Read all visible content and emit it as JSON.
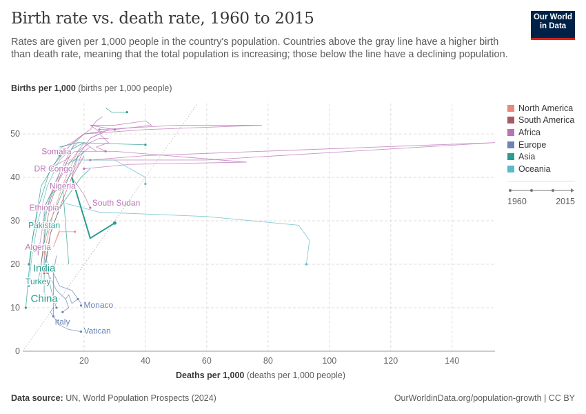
{
  "header": {
    "title": "Birth rate vs. death rate, 1960 to 2015",
    "subtitle": "Rates are given per 1,000 people in the country's population. Countries above the gray line have a higher birth than death rate, meaning that the total population is increasing; those below the line have a declining population.",
    "logo": "Our World in Data"
  },
  "footer": {
    "source_label": "Data source:",
    "source": "UN, World Population Prospects (2024)",
    "url": "OurWorldinData.org/population-growth | CC BY"
  },
  "timeline": {
    "start": "1960",
    "end": "2015"
  },
  "colors": {
    "North America": "#e8897b",
    "South America": "#a85a64",
    "Africa": "#b873b5",
    "Europe": "#6b84b3",
    "Asia": "#2a9d8f",
    "Oceania": "#5bbac8",
    "grid": "#dddddd",
    "diagonal": "#bbbbbb"
  },
  "chart_data": {
    "type": "scatter",
    "connected": true,
    "xlabel_bold": "Deaths per 1,000",
    "xlabel": "(deaths per 1,000 people)",
    "ylabel_bold": "Births per 1,000",
    "ylabel": "(births per 1,000 people)",
    "xlim": [
      0,
      154
    ],
    "ylim": [
      0,
      57
    ],
    "xticks": [
      20,
      40,
      60,
      80,
      100,
      120,
      140
    ],
    "yticks": [
      0,
      10,
      20,
      30,
      40,
      50
    ],
    "grid": true,
    "reference_line": "y = x",
    "legend_position": "right",
    "legend": [
      "North America",
      "South America",
      "Africa",
      "Europe",
      "Asia",
      "Oceania"
    ],
    "series": [
      {
        "name": "Somalia",
        "region": "Africa",
        "label": true,
        "points": [
          [
            26,
            50
          ],
          [
            24,
            51
          ],
          [
            22,
            52
          ],
          [
            30,
            51
          ],
          [
            20,
            50
          ],
          [
            16,
            48
          ],
          [
            13,
            47
          ],
          [
            11,
            46
          ]
        ]
      },
      {
        "name": "DR Congo",
        "region": "Africa",
        "label": true,
        "points": [
          [
            22,
            47
          ],
          [
            20,
            48
          ],
          [
            19,
            47
          ],
          [
            18,
            46
          ],
          [
            17,
            46
          ],
          [
            14,
            44
          ],
          [
            11,
            43
          ],
          [
            10,
            42
          ]
        ]
      },
      {
        "name": "Nigeria",
        "region": "Africa",
        "label": true,
        "points": [
          [
            24,
            46
          ],
          [
            22,
            47
          ],
          [
            20,
            46
          ],
          [
            19,
            45
          ],
          [
            18,
            43
          ],
          [
            15,
            40
          ],
          [
            13,
            38
          ]
        ]
      },
      {
        "name": "Ethiopia",
        "region": "Africa",
        "label": true,
        "points": [
          [
            28,
            49
          ],
          [
            25,
            49
          ],
          [
            22,
            48
          ],
          [
            20,
            47
          ],
          [
            18,
            46
          ],
          [
            14,
            42
          ],
          [
            9,
            36
          ],
          [
            7,
            33
          ]
        ]
      },
      {
        "name": "South Sudan",
        "region": "Africa",
        "label": true,
        "points": [
          [
            28,
            51
          ],
          [
            25,
            50
          ],
          [
            22,
            49
          ],
          [
            20,
            47
          ],
          [
            18,
            45
          ],
          [
            16,
            40
          ],
          [
            20,
            36
          ],
          [
            22,
            33
          ]
        ]
      },
      {
        "name": "Pakistan",
        "region": "Asia",
        "label": true,
        "points": [
          [
            20,
            46
          ],
          [
            17,
            44
          ],
          [
            14,
            43
          ],
          [
            12,
            41
          ],
          [
            10,
            37
          ],
          [
            8,
            33
          ],
          [
            7,
            29
          ]
        ]
      },
      {
        "name": "Algeria",
        "region": "Africa",
        "label": true,
        "points": [
          [
            20,
            50
          ],
          [
            17,
            48
          ],
          [
            14,
            44
          ],
          [
            10,
            38
          ],
          [
            7,
            31
          ],
          [
            5,
            22
          ],
          [
            5,
            24
          ]
        ]
      },
      {
        "name": "India",
        "region": "Asia",
        "label": true,
        "points": [
          [
            22,
            42
          ],
          [
            19,
            40
          ],
          [
            16,
            37
          ],
          [
            13,
            34
          ],
          [
            11,
            31
          ],
          [
            9,
            27
          ],
          [
            8,
            22
          ],
          [
            7,
            19
          ]
        ]
      },
      {
        "name": "Turkey",
        "region": "Asia",
        "label": true,
        "points": [
          [
            18,
            45
          ],
          [
            15,
            40
          ],
          [
            12,
            35
          ],
          [
            9,
            30
          ],
          [
            7,
            25
          ],
          [
            6,
            20
          ],
          [
            5,
            16
          ]
        ]
      },
      {
        "name": "China",
        "region": "Asia",
        "label": true,
        "points": [
          [
            15,
            20
          ],
          [
            13,
            38
          ],
          [
            9,
            36
          ],
          [
            7,
            33
          ],
          [
            7,
            24
          ],
          [
            7,
            18
          ],
          [
            7,
            14
          ],
          [
            7,
            12
          ]
        ]
      },
      {
        "name": "Monaco",
        "region": "Europe",
        "label": true,
        "points": [
          [
            14,
            12
          ],
          [
            15,
            13
          ],
          [
            16,
            11
          ],
          [
            18,
            12
          ],
          [
            19,
            11
          ],
          [
            19,
            10.5
          ]
        ]
      },
      {
        "name": "Italy",
        "region": "Europe",
        "label": true,
        "points": [
          [
            10,
            18
          ],
          [
            10,
            17
          ],
          [
            10,
            14
          ],
          [
            10,
            11
          ],
          [
            10,
            10
          ],
          [
            10,
            9
          ],
          [
            10,
            8
          ]
        ]
      },
      {
        "name": "Vatican",
        "region": "Europe",
        "label": true,
        "points": [
          [
            10,
            10
          ],
          [
            9,
            9
          ],
          [
            12,
            6
          ],
          [
            15,
            5
          ],
          [
            19,
            4.5
          ]
        ]
      },
      {
        "name": "",
        "region": "Africa",
        "label": false,
        "points": [
          [
            22,
            52
          ],
          [
            30,
            52
          ],
          [
            40,
            53
          ],
          [
            42,
            52
          ],
          [
            30,
            51
          ]
        ]
      },
      {
        "name": "",
        "region": "Africa",
        "label": false,
        "points": [
          [
            20,
            44
          ],
          [
            60,
            44
          ],
          [
            154,
            48
          ],
          [
            40,
            45
          ],
          [
            22,
            44
          ]
        ]
      },
      {
        "name": "",
        "region": "Africa",
        "label": false,
        "points": [
          [
            20,
            50
          ],
          [
            40,
            51
          ],
          [
            78,
            52
          ],
          [
            50,
            52
          ],
          [
            25,
            51
          ]
        ]
      },
      {
        "name": "",
        "region": "Africa",
        "label": false,
        "points": [
          [
            18,
            46
          ],
          [
            30,
            46
          ],
          [
            73,
            43.5
          ],
          [
            35,
            43
          ],
          [
            20,
            42
          ]
        ]
      },
      {
        "name": "",
        "region": "Oceania",
        "label": false,
        "points": [
          [
            14,
            34
          ],
          [
            25,
            32
          ],
          [
            60,
            31
          ],
          [
            90,
            29
          ],
          [
            93.5,
            25.5
          ],
          [
            92.5,
            20
          ]
        ]
      },
      {
        "name": "",
        "region": "Asia",
        "label": true,
        "points": [
          [
            16,
            40
          ],
          [
            22,
            26
          ],
          [
            30,
            29.5
          ]
        ]
      },
      {
        "name": "",
        "region": "Asia",
        "label": false,
        "points": [
          [
            12,
            47
          ],
          [
            18,
            48
          ],
          [
            40,
            47.5
          ]
        ]
      },
      {
        "name": "",
        "region": "Oceania",
        "label": false,
        "points": [
          [
            15,
            44
          ],
          [
            30,
            44
          ],
          [
            40,
            40
          ],
          [
            40,
            38.5
          ]
        ]
      },
      {
        "name": "",
        "region": "North America",
        "label": false,
        "points": [
          [
            18,
            46
          ],
          [
            14,
            40
          ],
          [
            10,
            32
          ],
          [
            8,
            26
          ],
          [
            7,
            22
          ],
          [
            8,
            18
          ]
        ]
      },
      {
        "name": "",
        "region": "North America",
        "label": false,
        "points": [
          [
            12,
            28
          ],
          [
            10,
            24
          ],
          [
            12,
            27.5
          ],
          [
            17,
            27.5
          ]
        ]
      },
      {
        "name": "",
        "region": "South America",
        "label": false,
        "points": [
          [
            16,
            46
          ],
          [
            12,
            40
          ],
          [
            9,
            34
          ],
          [
            7,
            26
          ],
          [
            6,
            20
          ],
          [
            6,
            16
          ]
        ]
      },
      {
        "name": "",
        "region": "South America",
        "label": false,
        "points": [
          [
            20,
            45
          ],
          [
            16,
            40
          ],
          [
            12,
            33
          ],
          [
            9,
            27
          ],
          [
            8,
            23
          ],
          [
            7,
            18
          ]
        ]
      },
      {
        "name": "",
        "region": "Europe",
        "label": false,
        "points": [
          [
            11,
            22
          ],
          [
            10,
            18
          ],
          [
            12,
            15
          ],
          [
            16,
            14
          ],
          [
            18,
            12
          ]
        ]
      },
      {
        "name": "",
        "region": "Europe",
        "label": false,
        "points": [
          [
            9,
            17
          ],
          [
            11,
            14
          ],
          [
            14,
            12
          ],
          [
            15,
            10
          ],
          [
            13,
            9
          ]
        ]
      },
      {
        "name": "",
        "region": "Europe",
        "label": false,
        "points": [
          [
            7,
            25
          ],
          [
            8,
            20
          ],
          [
            9,
            15
          ],
          [
            10,
            12
          ],
          [
            11,
            10
          ]
        ]
      },
      {
        "name": "",
        "region": "Oceania",
        "label": false,
        "points": [
          [
            18,
            48
          ],
          [
            12,
            44
          ],
          [
            8,
            38
          ],
          [
            5,
            30
          ],
          [
            3,
            22
          ],
          [
            2,
            15
          ]
        ]
      },
      {
        "name": "",
        "region": "Asia",
        "label": false,
        "points": [
          [
            20,
            48
          ],
          [
            12,
            45
          ],
          [
            6,
            38
          ],
          [
            3,
            25
          ],
          [
            2,
            18
          ],
          [
            1,
            10
          ]
        ]
      },
      {
        "name": "",
        "region": "Asia",
        "label": false,
        "points": [
          [
            15,
            47
          ],
          [
            9,
            42
          ],
          [
            5,
            33
          ],
          [
            3,
            25
          ],
          [
            2,
            20
          ]
        ]
      },
      {
        "name": "",
        "region": "Africa",
        "label": false,
        "points": [
          [
            26,
            54
          ],
          [
            24,
            53
          ],
          [
            22,
            51
          ],
          [
            18,
            49
          ],
          [
            15,
            47
          ],
          [
            12,
            45
          ]
        ]
      },
      {
        "name": "",
        "region": "Asia",
        "label": false,
        "points": [
          [
            27,
            56
          ],
          [
            29,
            55
          ],
          [
            30,
            55
          ],
          [
            34,
            55
          ]
        ]
      },
      {
        "name": "",
        "region": "Africa",
        "label": false,
        "points": [
          [
            22,
            49
          ],
          [
            25,
            50
          ],
          [
            28,
            48
          ],
          [
            24,
            47
          ],
          [
            27,
            46
          ]
        ]
      }
    ]
  }
}
